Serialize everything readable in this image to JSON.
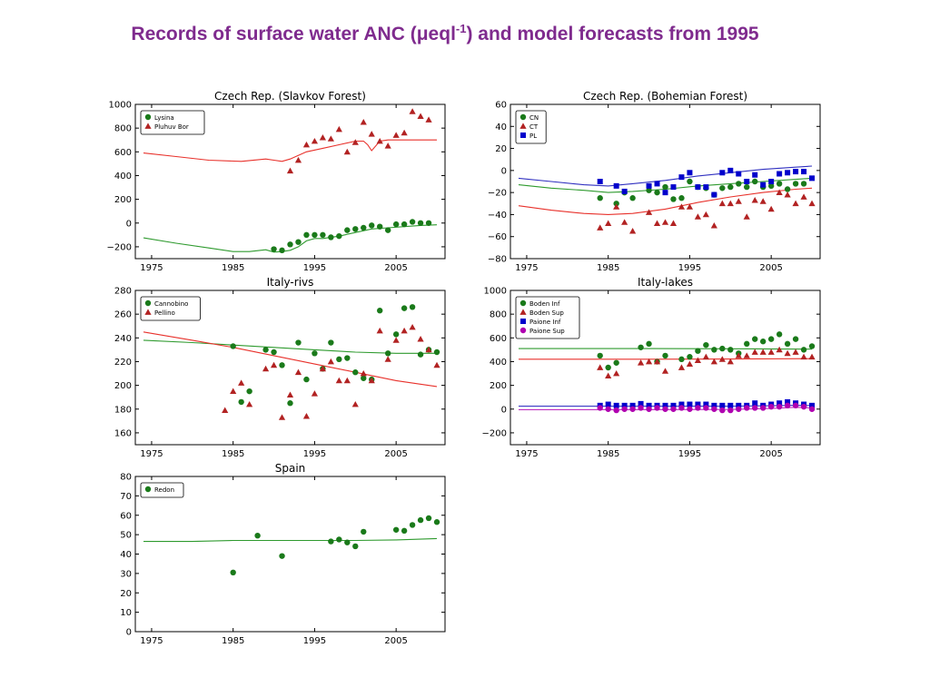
{
  "slide": {
    "title_pre": "Records of surface water ANC (μeql",
    "title_sup": "-1",
    "title_post": ") and model forecasts from 1995"
  },
  "chart_data": [
    {
      "type": "scatter",
      "title": "Czech Rep. (Slavkov Forest)",
      "xlim": [
        1973,
        2011
      ],
      "ylim": [
        -300,
        1000
      ],
      "xticks": [
        1975,
        1985,
        1995,
        2005
      ],
      "yticks": [
        -200,
        0,
        200,
        400,
        600,
        800,
        1000
      ],
      "legend_position": "top-left",
      "series": [
        {
          "name": "Lysina",
          "marker": "circle",
          "color": "#1a7a1a",
          "x": [
            1990,
            1991,
            1992,
            1993,
            1994,
            1995,
            1996,
            1997,
            1998,
            1999,
            2000,
            2001,
            2002,
            2003,
            2004,
            2005,
            2006,
            2007,
            2008,
            2009
          ],
          "y": [
            -220,
            -230,
            -180,
            -160,
            -100,
            -100,
            -100,
            -120,
            -110,
            -60,
            -50,
            -40,
            -20,
            -30,
            -60,
            -10,
            -10,
            10,
            0,
            0
          ]
        },
        {
          "name": "Pluhuv Bor",
          "marker": "triangle",
          "color": "#b22222",
          "x": [
            1992,
            1993,
            1994,
            1995,
            1996,
            1997,
            1998,
            1999,
            2000,
            2001,
            2002,
            2003,
            2004,
            2005,
            2006,
            2007,
            2008,
            2009
          ],
          "y": [
            440,
            530,
            660,
            690,
            720,
            710,
            790,
            600,
            680,
            850,
            750,
            690,
            650,
            740,
            760,
            940,
            900,
            870
          ]
        }
      ],
      "lines": [
        {
          "color": "#e8312b",
          "x": [
            1974,
            1978,
            1982,
            1986,
            1989,
            1990,
            1991,
            1992,
            1994,
            1996,
            1998,
            2000,
            2001,
            2001.5,
            2002,
            2002.5,
            2003,
            2004,
            2006,
            2008,
            2010
          ],
          "y": [
            590,
            560,
            530,
            520,
            540,
            530,
            520,
            540,
            600,
            630,
            660,
            690,
            690,
            660,
            610,
            650,
            690,
            700,
            700,
            700,
            700
          ]
        },
        {
          "color": "#2e9a2e",
          "x": [
            1974,
            1978,
            1982,
            1985,
            1987,
            1989,
            1990,
            1991,
            1992,
            1993,
            1994,
            1995,
            1996,
            1998,
            2000,
            2002,
            2004,
            2006,
            2008,
            2010
          ],
          "y": [
            -125,
            -170,
            -210,
            -240,
            -240,
            -225,
            -245,
            -240,
            -230,
            -200,
            -150,
            -130,
            -130,
            -110,
            -80,
            -50,
            -40,
            -30,
            -20,
            -15
          ]
        }
      ]
    },
    {
      "type": "scatter",
      "title": "Czech Rep. (Bohemian Forest)",
      "xlim": [
        1973,
        2011
      ],
      "ylim": [
        -80,
        60
      ],
      "xticks": [
        1975,
        1985,
        1995,
        2005
      ],
      "yticks": [
        -80,
        -60,
        -40,
        -20,
        0,
        20,
        40,
        60
      ],
      "legend_position": "top-left",
      "series": [
        {
          "name": "CN",
          "marker": "circle",
          "color": "#1a7a1a",
          "x": [
            1984,
            1986,
            1987,
            1988,
            1990,
            1991,
            1992,
            1993,
            1994,
            1995,
            1996,
            1997,
            1998,
            1999,
            2000,
            2001,
            2002,
            2003,
            2004,
            2005,
            2006,
            2007,
            2008,
            2009
          ],
          "y": [
            -25,
            -30,
            -20,
            -25,
            -18,
            -20,
            -15,
            -26,
            -25,
            -10,
            -15,
            -16,
            -22,
            -16,
            -15,
            -12,
            -15,
            -10,
            -15,
            -14,
            -12,
            -17,
            -12,
            -12
          ]
        },
        {
          "name": "CT",
          "marker": "triangle",
          "color": "#b22222",
          "x": [
            1984,
            1985,
            1986,
            1987,
            1988,
            1990,
            1991,
            1992,
            1993,
            1994,
            1995,
            1996,
            1997,
            1998,
            1999,
            2000,
            2001,
            2002,
            2003,
            2004,
            2005,
            2006,
            2007,
            2008,
            2009,
            2010
          ],
          "y": [
            -52,
            -48,
            -33,
            -47,
            -55,
            -38,
            -48,
            -47,
            -48,
            -33,
            -33,
            -42,
            -40,
            -50,
            -30,
            -30,
            -28,
            -42,
            -27,
            -28,
            -35,
            -20,
            -22,
            -30,
            -24,
            -30
          ]
        },
        {
          "name": "PL",
          "marker": "square",
          "color": "#0000cc",
          "x": [
            1984,
            1986,
            1987,
            1990,
            1991,
            1992,
            1993,
            1994,
            1995,
            1996,
            1997,
            1998,
            1999,
            2000,
            2001,
            2002,
            2003,
            2004,
            2005,
            2006,
            2007,
            2008,
            2009,
            2010
          ],
          "y": [
            -10,
            -14,
            -19,
            -14,
            -12,
            -20,
            -15,
            -6,
            -2,
            -15,
            -15,
            -22,
            -2,
            0,
            -3,
            -10,
            -4,
            -13,
            -10,
            -3,
            -2,
            -1,
            -1,
            -7
          ]
        }
      ],
      "lines": [
        {
          "color": "#3030c0",
          "x": [
            1974,
            1978,
            1982,
            1985,
            1988,
            1992,
            1996,
            2000,
            2004,
            2008,
            2010
          ],
          "y": [
            -7,
            -10,
            -13,
            -14,
            -12,
            -9,
            -5,
            -2,
            1,
            3,
            4
          ]
        },
        {
          "color": "#2e9a2e",
          "x": [
            1974,
            1978,
            1982,
            1985,
            1988,
            1992,
            1996,
            2000,
            2004,
            2008,
            2010
          ],
          "y": [
            -13,
            -16,
            -18,
            -20,
            -19,
            -17,
            -14,
            -12,
            -10,
            -8,
            -7
          ]
        },
        {
          "color": "#e8312b",
          "x": [
            1974,
            1978,
            1982,
            1985,
            1988,
            1992,
            1996,
            2000,
            2004,
            2008,
            2010
          ],
          "y": [
            -32,
            -36,
            -39,
            -40,
            -39,
            -35,
            -29,
            -24,
            -20,
            -17,
            -16
          ]
        }
      ]
    },
    {
      "type": "scatter",
      "title": "Italy-rivs",
      "xlim": [
        1973,
        2011
      ],
      "ylim": [
        150,
        280
      ],
      "xticks": [
        1975,
        1985,
        1995,
        2005
      ],
      "yticks": [
        160,
        180,
        200,
        220,
        240,
        260,
        280
      ],
      "legend_position": "top-left",
      "series": [
        {
          "name": "Cannobino",
          "marker": "circle",
          "color": "#1a7a1a",
          "x": [
            1985,
            1986,
            1987,
            1989,
            1990,
            1991,
            1992,
            1993,
            1994,
            1995,
            1996,
            1997,
            1998,
            1999,
            2000,
            2001,
            2002,
            2003,
            2004,
            2005,
            2006,
            2007,
            2008,
            2009,
            2010
          ],
          "y": [
            233,
            186,
            195,
            230,
            228,
            217,
            185,
            236,
            205,
            227,
            214,
            236,
            222,
            223,
            211,
            206,
            205,
            263,
            227,
            243,
            265,
            266,
            226,
            230,
            228
          ]
        },
        {
          "name": "Pellino",
          "marker": "triangle",
          "color": "#b22222",
          "x": [
            1984,
            1985,
            1986,
            1987,
            1989,
            1990,
            1991,
            1992,
            1993,
            1994,
            1995,
            1996,
            1997,
            1998,
            1999,
            2000,
            2001,
            2002,
            2003,
            2004,
            2005,
            2006,
            2007,
            2008,
            2009,
            2010
          ],
          "y": [
            179,
            195,
            202,
            184,
            214,
            217,
            173,
            192,
            211,
            174,
            193,
            214,
            220,
            204,
            204,
            184,
            210,
            204,
            246,
            222,
            238,
            246,
            249,
            239,
            230,
            217
          ]
        }
      ],
      "lines": [
        {
          "color": "#2e9a2e",
          "x": [
            1974,
            1980,
            1985,
            1990,
            1995,
            2000,
            2005,
            2010
          ],
          "y": [
            238,
            236,
            234,
            232,
            230,
            228,
            227,
            227
          ]
        },
        {
          "color": "#e8312b",
          "x": [
            1974,
            1980,
            1985,
            1990,
            1995,
            2000,
            2005,
            2010
          ],
          "y": [
            245,
            238,
            232,
            225,
            218,
            211,
            204,
            199
          ]
        }
      ]
    },
    {
      "type": "scatter",
      "title": "Italy-lakes",
      "xlim": [
        1973,
        2011
      ],
      "ylim": [
        -300,
        1000
      ],
      "xticks": [
        1975,
        1985,
        1995,
        2005
      ],
      "yticks": [
        -200,
        0,
        200,
        400,
        600,
        800,
        1000
      ],
      "legend_position": "top-left",
      "series": [
        {
          "name": "Boden Inf",
          "marker": "circle",
          "color": "#1a7a1a",
          "x": [
            1984,
            1985,
            1986,
            1989,
            1990,
            1991,
            1992,
            1994,
            1995,
            1996,
            1997,
            1998,
            1999,
            2000,
            2001,
            2002,
            2003,
            2004,
            2005,
            2006,
            2007,
            2008,
            2009,
            2010
          ],
          "y": [
            450,
            350,
            390,
            520,
            550,
            400,
            450,
            420,
            440,
            490,
            540,
            500,
            510,
            500,
            470,
            550,
            590,
            570,
            590,
            630,
            550,
            590,
            500,
            530
          ]
        },
        {
          "name": "Boden Sup",
          "marker": "triangle",
          "color": "#b22222",
          "x": [
            1984,
            1985,
            1986,
            1989,
            1990,
            1991,
            1992,
            1994,
            1995,
            1996,
            1997,
            1998,
            1999,
            2000,
            2001,
            2002,
            2003,
            2004,
            2005,
            2006,
            2007,
            2008,
            2009,
            2010
          ],
          "y": [
            350,
            280,
            300,
            390,
            400,
            400,
            320,
            350,
            380,
            410,
            440,
            400,
            420,
            400,
            450,
            450,
            480,
            480,
            480,
            500,
            470,
            480,
            440,
            440
          ]
        },
        {
          "name": "Paione Inf",
          "marker": "square",
          "color": "#0000cc",
          "x": [
            1984,
            1985,
            1986,
            1987,
            1988,
            1989,
            1990,
            1991,
            1992,
            1993,
            1994,
            1995,
            1996,
            1997,
            1998,
            1999,
            2000,
            2001,
            2002,
            2003,
            2004,
            2005,
            2006,
            2007,
            2008,
            2009,
            2010
          ],
          "y": [
            30,
            40,
            30,
            30,
            30,
            45,
            30,
            30,
            30,
            30,
            40,
            40,
            40,
            40,
            30,
            30,
            30,
            30,
            30,
            50,
            30,
            40,
            50,
            60,
            50,
            40,
            30
          ]
        },
        {
          "name": "Paione Sup",
          "marker": "circle",
          "color": "#b000b0",
          "x": [
            1984,
            1985,
            1986,
            1987,
            1988,
            1989,
            1990,
            1991,
            1992,
            1993,
            1994,
            1995,
            1996,
            1997,
            1998,
            1999,
            2000,
            2001,
            2002,
            2003,
            2004,
            2005,
            2006,
            2007,
            2008,
            2009,
            2010
          ],
          "y": [
            10,
            0,
            -10,
            0,
            0,
            10,
            0,
            10,
            0,
            0,
            10,
            0,
            10,
            10,
            0,
            -10,
            -10,
            0,
            10,
            10,
            10,
            20,
            20,
            30,
            30,
            20,
            0
          ]
        }
      ],
      "lines": [
        {
          "color": "#2e9a2e",
          "x": [
            1974,
            1990,
            2000,
            2010
          ],
          "y": [
            510,
            510,
            508,
            505
          ]
        },
        {
          "color": "#e8312b",
          "x": [
            1974,
            1990,
            2000,
            2010
          ],
          "y": [
            420,
            420,
            422,
            425
          ]
        },
        {
          "color": "#3030c0",
          "x": [
            1974,
            1990,
            2000,
            2005,
            2008,
            2010
          ],
          "y": [
            25,
            25,
            25,
            28,
            32,
            30
          ]
        },
        {
          "color": "#c030c0",
          "x": [
            1974,
            1990,
            2000,
            2005,
            2008,
            2010
          ],
          "y": [
            -5,
            -5,
            -3,
            5,
            15,
            10
          ]
        }
      ]
    },
    {
      "type": "scatter",
      "title": "Spain",
      "xlim": [
        1973,
        2011
      ],
      "ylim": [
        0,
        80
      ],
      "xticks": [
        1975,
        1985,
        1995,
        2005
      ],
      "yticks": [
        0,
        10,
        20,
        30,
        40,
        50,
        60,
        70,
        80
      ],
      "legend_position": "top-left",
      "series": [
        {
          "name": "Redon",
          "marker": "circle",
          "color": "#1a7a1a",
          "x": [
            1985,
            1988,
            1991,
            1997,
            1998,
            1999,
            2000,
            2001,
            2005,
            2006,
            2007,
            2008,
            2009,
            2010
          ],
          "y": [
            30.5,
            49.5,
            39,
            46.5,
            47.5,
            46,
            44,
            51.5,
            52.5,
            52,
            55,
            57.5,
            58.5,
            56.5
          ]
        }
      ],
      "lines": [
        {
          "color": "#2e9a2e",
          "x": [
            1974,
            1980,
            1985,
            1990,
            1995,
            2000,
            2005,
            2010
          ],
          "y": [
            46.5,
            46.5,
            47,
            47,
            47,
            47,
            47.3,
            48
          ]
        }
      ]
    }
  ]
}
